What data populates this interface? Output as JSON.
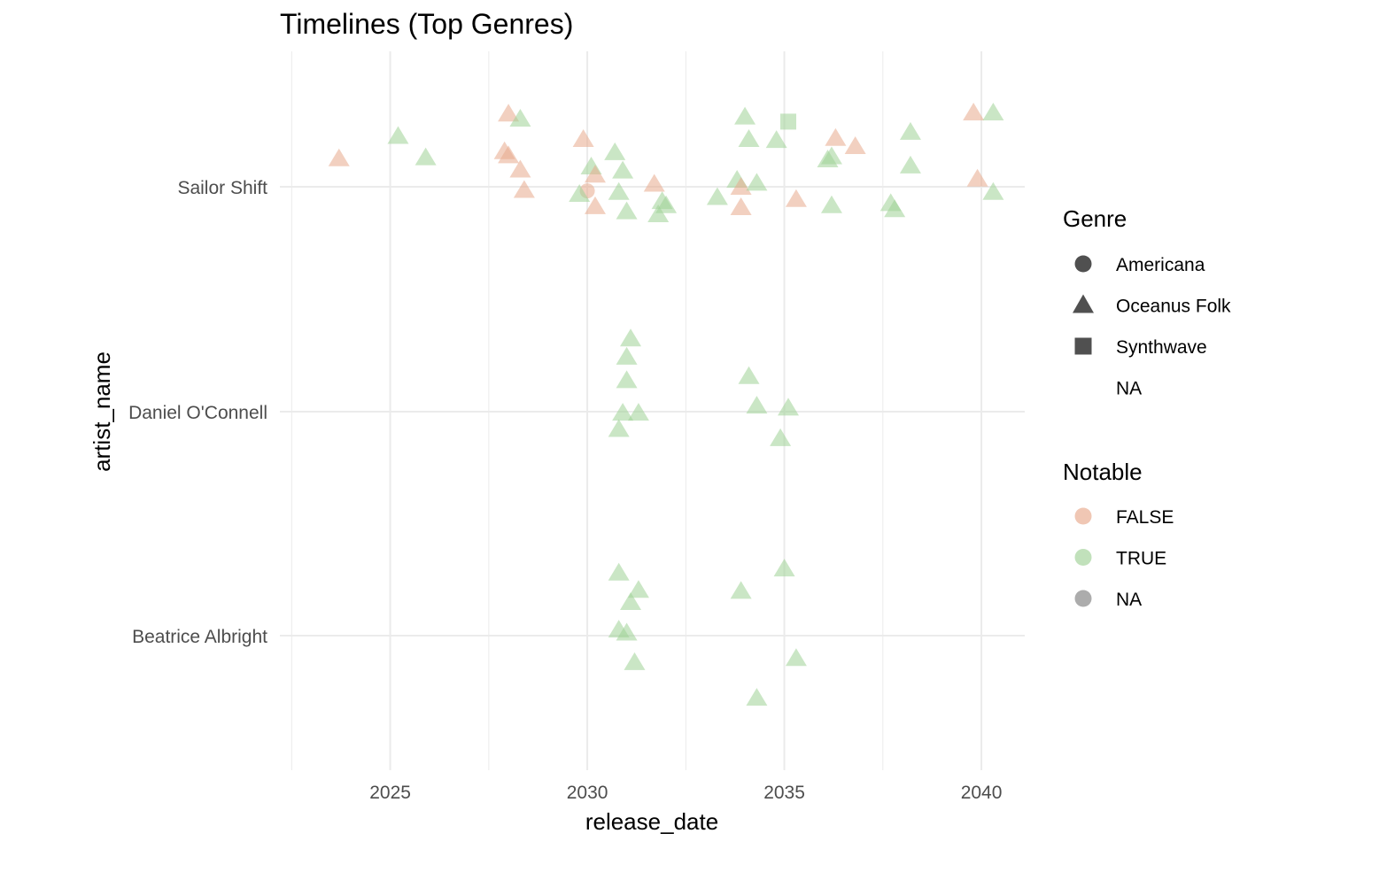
{
  "chart_data": {
    "type": "scatter",
    "title": "Timelines (Top Genres)",
    "xlabel": "release_date",
    "ylabel": "artist_name",
    "xlim": [
      2022.2,
      2041.1
    ],
    "x_ticks": [
      "2025",
      "2030",
      "2035",
      "2040"
    ],
    "categories": [
      "Sailor Shift",
      "Daniel O'Connell",
      "Beatrice Albright"
    ],
    "grid": true,
    "legend_position": "right",
    "colors": {
      "FALSE": "#e8a98c",
      "TRUE": "#9fd196",
      "NA": "#7f7f7f"
    },
    "legends": [
      {
        "title": "Genre",
        "entries": [
          {
            "label": "Americana",
            "shape": "circle"
          },
          {
            "label": "Oceanus Folk",
            "shape": "triangle"
          },
          {
            "label": "Synthwave",
            "shape": "square"
          },
          {
            "label": "NA",
            "shape": "none"
          }
        ]
      },
      {
        "title": "Notable",
        "entries": [
          {
            "label": "FALSE",
            "color": "#e8a98c"
          },
          {
            "label": "TRUE",
            "color": "#9fd196"
          },
          {
            "label": "NA",
            "color": "#7f7f7f"
          }
        ]
      }
    ],
    "points": [
      {
        "artist": "Sailor Shift",
        "x": 2023.7,
        "jitter": 0.28,
        "genre": "Oceanus Folk",
        "notable": "FALSE"
      },
      {
        "artist": "Sailor Shift",
        "x": 2025.2,
        "jitter": 0.5,
        "genre": "Oceanus Folk",
        "notable": "TRUE"
      },
      {
        "artist": "Sailor Shift",
        "x": 2025.9,
        "jitter": 0.29,
        "genre": "Oceanus Folk",
        "notable": "TRUE"
      },
      {
        "artist": "Sailor Shift",
        "x": 2027.9,
        "jitter": 0.35,
        "genre": "Oceanus Folk",
        "notable": "FALSE"
      },
      {
        "artist": "Sailor Shift",
        "x": 2028.0,
        "jitter": 0.31,
        "genre": "Oceanus Folk",
        "notable": "FALSE"
      },
      {
        "artist": "Sailor Shift",
        "x": 2028.0,
        "jitter": 0.72,
        "genre": "Oceanus Folk",
        "notable": "FALSE"
      },
      {
        "artist": "Sailor Shift",
        "x": 2028.3,
        "jitter": 0.67,
        "genre": "Oceanus Folk",
        "notable": "TRUE"
      },
      {
        "artist": "Sailor Shift",
        "x": 2028.3,
        "jitter": 0.17,
        "genre": "Oceanus Folk",
        "notable": "FALSE"
      },
      {
        "artist": "Sailor Shift",
        "x": 2028.4,
        "jitter": -0.03,
        "genre": "Oceanus Folk",
        "notable": "FALSE"
      },
      {
        "artist": "Sailor Shift",
        "x": 2029.9,
        "jitter": 0.47,
        "genre": "Oceanus Folk",
        "notable": "FALSE"
      },
      {
        "artist": "Sailor Shift",
        "x": 2030.0,
        "jitter": -0.04,
        "genre": "Americana",
        "notable": "FALSE"
      },
      {
        "artist": "Sailor Shift",
        "x": 2030.1,
        "jitter": 0.2,
        "genre": "Oceanus Folk",
        "notable": "TRUE"
      },
      {
        "artist": "Sailor Shift",
        "x": 2030.2,
        "jitter": 0.12,
        "genre": "Oceanus Folk",
        "notable": "FALSE"
      },
      {
        "artist": "Sailor Shift",
        "x": 2029.8,
        "jitter": -0.07,
        "genre": "Oceanus Folk",
        "notable": "TRUE"
      },
      {
        "artist": "Sailor Shift",
        "x": 2030.2,
        "jitter": -0.19,
        "genre": "Oceanus Folk",
        "notable": "FALSE"
      },
      {
        "artist": "Sailor Shift",
        "x": 2030.7,
        "jitter": 0.34,
        "genre": "Oceanus Folk",
        "notable": "TRUE"
      },
      {
        "artist": "Sailor Shift",
        "x": 2030.9,
        "jitter": 0.16,
        "genre": "Oceanus Folk",
        "notable": "TRUE"
      },
      {
        "artist": "Sailor Shift",
        "x": 2030.8,
        "jitter": -0.05,
        "genre": "Oceanus Folk",
        "notable": "TRUE"
      },
      {
        "artist": "Sailor Shift",
        "x": 2031.0,
        "jitter": -0.24,
        "genre": "Oceanus Folk",
        "notable": "TRUE"
      },
      {
        "artist": "Sailor Shift",
        "x": 2031.7,
        "jitter": 0.03,
        "genre": "Oceanus Folk",
        "notable": "FALSE"
      },
      {
        "artist": "Sailor Shift",
        "x": 2031.8,
        "jitter": -0.27,
        "genre": "Oceanus Folk",
        "notable": "TRUE"
      },
      {
        "artist": "Sailor Shift",
        "x": 2031.9,
        "jitter": -0.14,
        "genre": "Oceanus Folk",
        "notable": "TRUE"
      },
      {
        "artist": "Sailor Shift",
        "x": 2032.0,
        "jitter": -0.18,
        "genre": "Oceanus Folk",
        "notable": "TRUE"
      },
      {
        "artist": "Sailor Shift",
        "x": 2033.3,
        "jitter": -0.1,
        "genre": "Oceanus Folk",
        "notable": "TRUE"
      },
      {
        "artist": "Sailor Shift",
        "x": 2033.8,
        "jitter": 0.07,
        "genre": "Oceanus Folk",
        "notable": "TRUE"
      },
      {
        "artist": "Sailor Shift",
        "x": 2033.9,
        "jitter": 0.0,
        "genre": "Oceanus Folk",
        "notable": "FALSE"
      },
      {
        "artist": "Sailor Shift",
        "x": 2033.9,
        "jitter": -0.2,
        "genre": "Oceanus Folk",
        "notable": "FALSE"
      },
      {
        "artist": "Sailor Shift",
        "x": 2034.0,
        "jitter": 0.69,
        "genre": "Oceanus Folk",
        "notable": "TRUE"
      },
      {
        "artist": "Sailor Shift",
        "x": 2034.1,
        "jitter": 0.47,
        "genre": "Oceanus Folk",
        "notable": "TRUE"
      },
      {
        "artist": "Sailor Shift",
        "x": 2034.3,
        "jitter": 0.04,
        "genre": "Oceanus Folk",
        "notable": "TRUE"
      },
      {
        "artist": "Sailor Shift",
        "x": 2034.8,
        "jitter": 0.46,
        "genre": "Oceanus Folk",
        "notable": "TRUE"
      },
      {
        "artist": "Sailor Shift",
        "x": 2035.1,
        "jitter": 0.64,
        "genre": "Synthwave",
        "notable": "TRUE"
      },
      {
        "artist": "Sailor Shift",
        "x": 2035.3,
        "jitter": -0.12,
        "genre": "Oceanus Folk",
        "notable": "FALSE"
      },
      {
        "artist": "Sailor Shift",
        "x": 2036.1,
        "jitter": 0.27,
        "genre": "Oceanus Folk",
        "notable": "TRUE"
      },
      {
        "artist": "Sailor Shift",
        "x": 2036.2,
        "jitter": 0.3,
        "genre": "Oceanus Folk",
        "notable": "TRUE"
      },
      {
        "artist": "Sailor Shift",
        "x": 2036.2,
        "jitter": -0.18,
        "genre": "Oceanus Folk",
        "notable": "TRUE"
      },
      {
        "artist": "Sailor Shift",
        "x": 2036.3,
        "jitter": 0.48,
        "genre": "Oceanus Folk",
        "notable": "FALSE"
      },
      {
        "artist": "Sailor Shift",
        "x": 2036.8,
        "jitter": 0.4,
        "genre": "Oceanus Folk",
        "notable": "FALSE"
      },
      {
        "artist": "Sailor Shift",
        "x": 2037.7,
        "jitter": -0.16,
        "genre": "Oceanus Folk",
        "notable": "TRUE"
      },
      {
        "artist": "Sailor Shift",
        "x": 2037.8,
        "jitter": -0.22,
        "genre": "Oceanus Folk",
        "notable": "TRUE"
      },
      {
        "artist": "Sailor Shift",
        "x": 2038.2,
        "jitter": 0.54,
        "genre": "Oceanus Folk",
        "notable": "TRUE"
      },
      {
        "artist": "Sailor Shift",
        "x": 2038.2,
        "jitter": 0.21,
        "genre": "Oceanus Folk",
        "notable": "TRUE"
      },
      {
        "artist": "Sailor Shift",
        "x": 2039.8,
        "jitter": 0.73,
        "genre": "Oceanus Folk",
        "notable": "FALSE"
      },
      {
        "artist": "Sailor Shift",
        "x": 2039.9,
        "jitter": 0.08,
        "genre": "Oceanus Folk",
        "notable": "FALSE"
      },
      {
        "artist": "Sailor Shift",
        "x": 2040.3,
        "jitter": 0.73,
        "genre": "Oceanus Folk",
        "notable": "TRUE"
      },
      {
        "artist": "Sailor Shift",
        "x": 2040.3,
        "jitter": -0.05,
        "genre": "Oceanus Folk",
        "notable": "TRUE"
      },
      {
        "artist": "Daniel O'Connell",
        "x": 2031.1,
        "jitter": 0.72,
        "genre": "Oceanus Folk",
        "notable": "TRUE"
      },
      {
        "artist": "Daniel O'Connell",
        "x": 2031.0,
        "jitter": 0.54,
        "genre": "Oceanus Folk",
        "notable": "TRUE"
      },
      {
        "artist": "Daniel O'Connell",
        "x": 2031.0,
        "jitter": 0.31,
        "genre": "Oceanus Folk",
        "notable": "TRUE"
      },
      {
        "artist": "Daniel O'Connell",
        "x": 2030.9,
        "jitter": -0.01,
        "genre": "Oceanus Folk",
        "notable": "TRUE"
      },
      {
        "artist": "Daniel O'Connell",
        "x": 2031.3,
        "jitter": -0.01,
        "genre": "Oceanus Folk",
        "notable": "TRUE"
      },
      {
        "artist": "Daniel O'Connell",
        "x": 2030.8,
        "jitter": -0.17,
        "genre": "Oceanus Folk",
        "notable": "TRUE"
      },
      {
        "artist": "Daniel O'Connell",
        "x": 2034.1,
        "jitter": 0.35,
        "genre": "Oceanus Folk",
        "notable": "TRUE"
      },
      {
        "artist": "Daniel O'Connell",
        "x": 2034.3,
        "jitter": 0.06,
        "genre": "Oceanus Folk",
        "notable": "TRUE"
      },
      {
        "artist": "Daniel O'Connell",
        "x": 2035.1,
        "jitter": 0.04,
        "genre": "Oceanus Folk",
        "notable": "TRUE"
      },
      {
        "artist": "Daniel O'Connell",
        "x": 2034.9,
        "jitter": -0.26,
        "genre": "Oceanus Folk",
        "notable": "TRUE"
      },
      {
        "artist": "Beatrice Albright",
        "x": 2030.8,
        "jitter": 0.62,
        "genre": "Oceanus Folk",
        "notable": "TRUE"
      },
      {
        "artist": "Beatrice Albright",
        "x": 2031.3,
        "jitter": 0.45,
        "genre": "Oceanus Folk",
        "notable": "TRUE"
      },
      {
        "artist": "Beatrice Albright",
        "x": 2031.1,
        "jitter": 0.33,
        "genre": "Oceanus Folk",
        "notable": "TRUE"
      },
      {
        "artist": "Beatrice Albright",
        "x": 2030.8,
        "jitter": 0.06,
        "genre": "Oceanus Folk",
        "notable": "TRUE"
      },
      {
        "artist": "Beatrice Albright",
        "x": 2031.0,
        "jitter": 0.03,
        "genre": "Oceanus Folk",
        "notable": "TRUE"
      },
      {
        "artist": "Beatrice Albright",
        "x": 2031.2,
        "jitter": -0.26,
        "genre": "Oceanus Folk",
        "notable": "TRUE"
      },
      {
        "artist": "Beatrice Albright",
        "x": 2033.9,
        "jitter": 0.44,
        "genre": "Oceanus Folk",
        "notable": "TRUE"
      },
      {
        "artist": "Beatrice Albright",
        "x": 2035.0,
        "jitter": 0.66,
        "genre": "Oceanus Folk",
        "notable": "TRUE"
      },
      {
        "artist": "Beatrice Albright",
        "x": 2035.3,
        "jitter": -0.22,
        "genre": "Oceanus Folk",
        "notable": "TRUE"
      },
      {
        "artist": "Beatrice Albright",
        "x": 2034.3,
        "jitter": -0.61,
        "genre": "Oceanus Folk",
        "notable": "TRUE"
      }
    ]
  }
}
